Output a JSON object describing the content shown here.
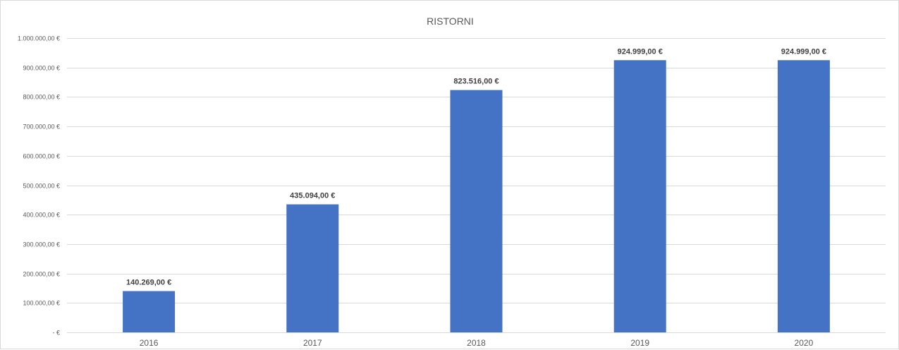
{
  "chart_data": {
    "type": "bar",
    "title": "RISTORNI",
    "xlabel": "",
    "ylabel": "",
    "categories": [
      "2016",
      "2017",
      "2018",
      "2019",
      "2020"
    ],
    "values": [
      140269,
      435094,
      823516,
      924999,
      924999
    ],
    "data_labels": [
      "140.269,00 €",
      "435.094,00 €",
      "823.516,00 €",
      "924.999,00 €",
      "924.999,00 €"
    ],
    "ylim": [
      0,
      1000000
    ],
    "y_ticks": [
      0,
      100000,
      200000,
      300000,
      400000,
      500000,
      600000,
      700000,
      800000,
      900000,
      1000000
    ],
    "y_tick_labels": [
      "-   €",
      "100.000,00 €",
      "200.000,00 €",
      "300.000,00 €",
      "400.000,00 €",
      "500.000,00 €",
      "600.000,00 €",
      "700.000,00 €",
      "800.000,00 €",
      "900.000,00 €",
      "1.000.000,00 €"
    ],
    "grid": true,
    "legend": "none",
    "colors": {
      "bar": "#4472C4",
      "grid": "#d9d9d9",
      "axis_text": "#595959",
      "data_label": "#404040"
    }
  }
}
